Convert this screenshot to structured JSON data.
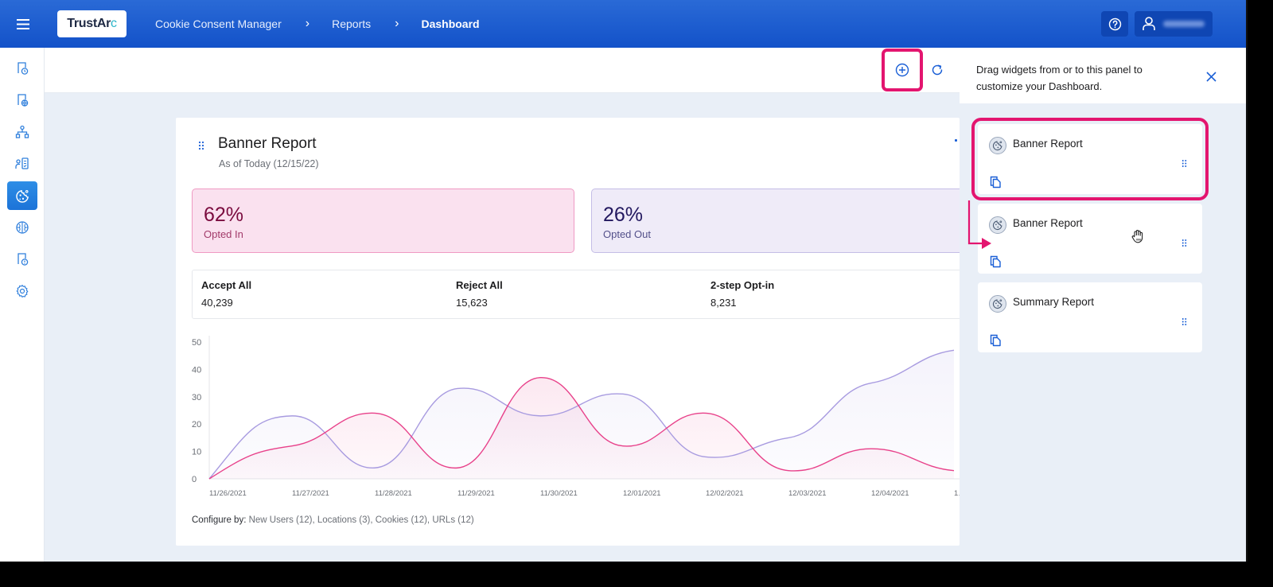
{
  "topbar": {
    "logo": {
      "main": "TrustAr",
      "accent": "c"
    },
    "breadcrumb": [
      {
        "label": "Cookie Consent Manager"
      },
      {
        "label": "Reports"
      },
      {
        "label": "Dashboard"
      }
    ],
    "user_name": "User Name (blurred)"
  },
  "sidebar": {
    "items": [
      {
        "icon": "report-clock-icon",
        "active": false
      },
      {
        "icon": "report-globe-icon",
        "active": false
      },
      {
        "icon": "hierarchy-icon",
        "active": false
      },
      {
        "icon": "user-checklist-icon",
        "active": false
      },
      {
        "icon": "cookie-icon",
        "active": true
      },
      {
        "icon": "brain-icon",
        "active": false
      },
      {
        "icon": "report-alert-icon",
        "active": false
      },
      {
        "icon": "gear-icon",
        "active": false
      }
    ]
  },
  "toolbar": {
    "add_widget": "add-widget",
    "refresh": "refresh"
  },
  "report": {
    "title": "Banner Report",
    "subtitle": "As of Today (12/15/22)",
    "stats": [
      {
        "value": "62%",
        "label": "Opted In"
      },
      {
        "value": "26%",
        "label": "Opted Out"
      }
    ],
    "counts": [
      {
        "label": "Accept All",
        "value": "40,239"
      },
      {
        "label": "Reject All",
        "value": "15,623"
      },
      {
        "label": "2-step Opt-in",
        "value": "8,231"
      }
    ],
    "configure": {
      "label": "Configure by:",
      "value": " New Users (12), Locations (3), Cookies (12), URLs (12)"
    }
  },
  "chart_data": {
    "type": "line",
    "title": "",
    "xlabel": "",
    "ylabel": "",
    "ylim": [
      0,
      50
    ],
    "yticks": [
      0,
      10,
      20,
      30,
      40,
      50
    ],
    "grid": false,
    "legend": null,
    "x": [
      "11/26/2021",
      "11/27/2021",
      "11/28/2021",
      "11/29/2021",
      "11/30/2021",
      "12/01/2021",
      "12/02/2021",
      "12/03/2021",
      "12/04/2021",
      "1…"
    ],
    "series": [
      {
        "name": "Opted Out (purple)",
        "color": "#a89be0",
        "values": [
          0,
          23,
          4,
          33,
          23,
          31,
          8,
          15,
          35,
          47
        ]
      },
      {
        "name": "Opted In (pink)",
        "color": "#e8418a",
        "values": [
          0,
          12,
          24,
          4,
          37,
          12,
          24,
          3,
          11,
          3
        ]
      }
    ]
  },
  "panel": {
    "message": "Drag widgets from or to this panel to customize your Dashboard.",
    "widgets": [
      {
        "title": "Banner Report",
        "highlighted": true
      },
      {
        "title": "Banner Report",
        "highlighted": false
      },
      {
        "title": "Summary Report",
        "highlighted": false
      }
    ]
  },
  "colors": {
    "topbar": "#1352c9",
    "accent_blue": "#1a5fd6",
    "highlight_pink": "#e3156f",
    "opted_in_bg": "#fae1ef",
    "opted_out_bg": "#efebf8"
  }
}
